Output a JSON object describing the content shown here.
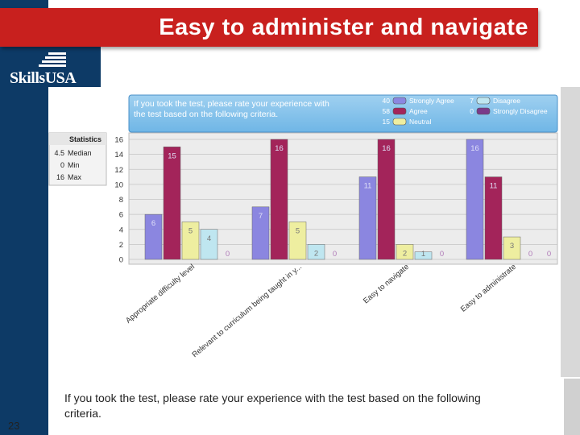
{
  "slide": {
    "title": "Easy to administer and navigate",
    "logo_text": "SkillsUSA",
    "caption": "If you took the test, please rate your experience with the test based on the following criteria.",
    "slide_number": "23"
  },
  "chart_data": {
    "type": "bar",
    "title": "If you took the test, please rate your experience with the test based on the following criteria.",
    "categories": [
      "Appropriate difficulty level",
      "Relevant to curriculum being taught in y...",
      "Easy to navigate",
      "Easy to administrate"
    ],
    "series": [
      {
        "name": "Strongly Agree",
        "total": "40",
        "color": "#8b86e0",
        "values": [
          6,
          7,
          11,
          16
        ]
      },
      {
        "name": "Agree",
        "total": "58",
        "color": "#a3245a",
        "values": [
          15,
          16,
          16,
          11
        ]
      },
      {
        "name": "Neutral",
        "total": "15",
        "color": "#eeeea0",
        "values": [
          5,
          5,
          2,
          3
        ]
      },
      {
        "name": "Disagree",
        "total": "7",
        "color": "#bfe6f0",
        "values": [
          4,
          2,
          1,
          0
        ]
      },
      {
        "name": "Strongly Disagree",
        "total": "0",
        "color": "#7a3a8a",
        "values": [
          0,
          0,
          0,
          0
        ]
      }
    ],
    "ylim": [
      0,
      16
    ],
    "yticks": [
      "0",
      "2",
      "4",
      "6",
      "8",
      "10",
      "12",
      "14",
      "16"
    ],
    "grid": true,
    "legend_position": "top-right",
    "statistics": {
      "title": "Statistics",
      "rows": [
        {
          "value": "4.5",
          "label": "Median"
        },
        {
          "value": "0",
          "label": "Min"
        },
        {
          "value": "16",
          "label": "Max"
        }
      ]
    }
  }
}
